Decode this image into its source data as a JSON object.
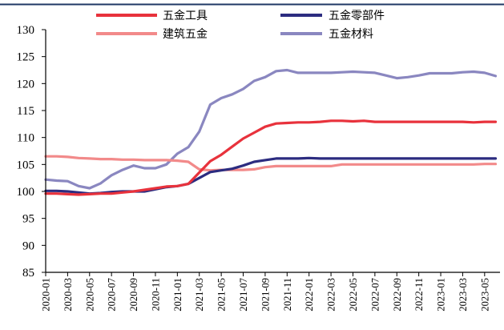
{
  "chart_data": {
    "type": "line",
    "y_ticks": [
      130,
      125,
      120,
      115,
      110,
      105,
      100,
      95,
      90,
      85
    ],
    "ylim": [
      85,
      130
    ],
    "x_tick_labels": [
      "2020-01",
      "2020-03",
      "2020-05",
      "2020-07",
      "2020-09",
      "2020-11",
      "2021-01",
      "2021-03",
      "2021-05",
      "2021-07",
      "2021-09",
      "2021-11",
      "2022-01",
      "2022-03",
      "2022-05",
      "2022-07",
      "2022-09",
      "2022-11",
      "2023-01",
      "2023-03",
      "2023-05"
    ],
    "x_range_months": [
      0,
      41.4
    ],
    "x_months": [
      0,
      1,
      2,
      3,
      4,
      5,
      6,
      7,
      8,
      9,
      10,
      11,
      12,
      13,
      14,
      15,
      16,
      17,
      18,
      19,
      20,
      21,
      22,
      23,
      24,
      25,
      26,
      27,
      28,
      29,
      30,
      31,
      32,
      33,
      34,
      35,
      36,
      37,
      38,
      39,
      40,
      41
    ],
    "legend_position": "top",
    "series": [
      {
        "name": "五金工具",
        "color": "#e8323c",
        "values": [
          99.6,
          99.6,
          99.5,
          99.4,
          99.5,
          99.6,
          99.6,
          99.8,
          100.0,
          100.3,
          100.6,
          100.9,
          101.0,
          101.4,
          103.5,
          105.6,
          106.8,
          108.3,
          109.8,
          110.9,
          112.0,
          112.6,
          112.7,
          112.8,
          112.8,
          112.9,
          113.1,
          113.1,
          113.0,
          113.1,
          112.9,
          112.9,
          112.9,
          112.9,
          112.9,
          112.9,
          112.9,
          112.9,
          112.9,
          112.8,
          112.9,
          112.9
        ]
      },
      {
        "name": "五金零部件",
        "color": "#2c2c80",
        "values": [
          100.1,
          100.1,
          100.0,
          99.8,
          99.6,
          99.7,
          99.9,
          100.0,
          100.0,
          100.0,
          100.4,
          100.8,
          101.0,
          101.4,
          102.5,
          103.6,
          103.9,
          104.2,
          104.8,
          105.5,
          105.8,
          106.1,
          106.1,
          106.1,
          106.2,
          106.1,
          106.1,
          106.1,
          106.1,
          106.1,
          106.1,
          106.1,
          106.1,
          106.1,
          106.1,
          106.1,
          106.1,
          106.1,
          106.1,
          106.1,
          106.1,
          106.1
        ]
      },
      {
        "name": "建筑五金",
        "color": "#f28a8a",
        "values": [
          106.5,
          106.5,
          106.4,
          106.2,
          106.1,
          106.0,
          106.0,
          105.9,
          105.9,
          105.8,
          105.8,
          105.8,
          105.7,
          105.5,
          104.1,
          103.9,
          104.0,
          104.0,
          104.0,
          104.1,
          104.5,
          104.7,
          104.7,
          104.7,
          104.7,
          104.7,
          104.7,
          105.0,
          105.0,
          105.0,
          105.0,
          105.0,
          105.0,
          105.0,
          105.0,
          105.0,
          105.0,
          105.0,
          105.0,
          105.0,
          105.1,
          105.1
        ]
      },
      {
        "name": "五金材料",
        "color": "#8a87c0",
        "values": [
          102.2,
          102.0,
          101.9,
          101.0,
          100.6,
          101.5,
          103.0,
          104.0,
          104.8,
          104.3,
          104.3,
          105.0,
          107.0,
          108.2,
          111.1,
          116.1,
          117.3,
          118.0,
          119.0,
          120.5,
          121.2,
          122.3,
          122.5,
          122.0,
          122.0,
          122.0,
          122.0,
          122.1,
          122.2,
          122.1,
          122.0,
          121.5,
          121.0,
          121.2,
          121.5,
          121.9,
          121.9,
          121.9,
          122.1,
          122.2,
          122.0,
          121.4
        ]
      }
    ]
  }
}
